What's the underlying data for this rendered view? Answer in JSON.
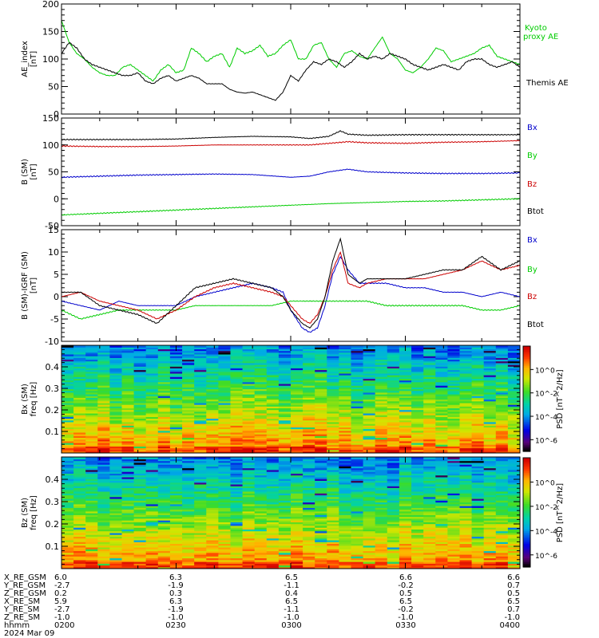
{
  "chart_data": [
    {
      "type": "line",
      "ylabel": [
        "AE_index",
        "[nT]"
      ],
      "ylim": [
        0,
        200
      ],
      "yticks": [
        0,
        50,
        100,
        150,
        200
      ],
      "xlim": [
        "0200",
        "0400"
      ],
      "series": [
        {
          "name": "Kyoto proxy AE",
          "label_lines": [
            "Kyoto",
            "proxy AE"
          ],
          "color": "#00cc00",
          "x": [
            0,
            2,
            4,
            6,
            8,
            10,
            12,
            14,
            16,
            18,
            20,
            22,
            24,
            26,
            28,
            30,
            32,
            34,
            36,
            38,
            40,
            42,
            44,
            46,
            48,
            50,
            52,
            54,
            56,
            58,
            60,
            62,
            64,
            66,
            68,
            70,
            72,
            74,
            76,
            78,
            80,
            82,
            84,
            86,
            88,
            90,
            92,
            94,
            96,
            98,
            100,
            102,
            104,
            106,
            108,
            110,
            112,
            114,
            116,
            118,
            120
          ],
          "y": [
            170,
            130,
            110,
            100,
            85,
            75,
            70,
            70,
            85,
            90,
            80,
            70,
            60,
            80,
            90,
            75,
            80,
            120,
            110,
            95,
            105,
            110,
            85,
            120,
            110,
            115,
            125,
            105,
            110,
            125,
            135,
            100,
            100,
            125,
            130,
            100,
            85,
            110,
            115,
            105,
            100,
            120,
            140,
            110,
            100,
            80,
            75,
            85,
            100,
            120,
            115,
            95,
            100,
            105,
            110,
            120,
            125,
            105,
            100,
            95,
            90
          ]
        },
        {
          "name": "Themis AE",
          "color": "#000000",
          "x": [
            0,
            2,
            4,
            6,
            8,
            10,
            12,
            14,
            16,
            18,
            20,
            22,
            24,
            26,
            28,
            30,
            32,
            34,
            36,
            38,
            40,
            42,
            44,
            46,
            48,
            50,
            52,
            54,
            56,
            58,
            60,
            62,
            64,
            66,
            68,
            70,
            72,
            74,
            76,
            78,
            80,
            82,
            84,
            86,
            88,
            90,
            92,
            94,
            96,
            98,
            100,
            102,
            104,
            106,
            108,
            110,
            112,
            114,
            116,
            118,
            120
          ],
          "y": [
            110,
            130,
            120,
            100,
            90,
            85,
            80,
            75,
            70,
            70,
            75,
            60,
            55,
            65,
            70,
            60,
            65,
            70,
            65,
            55,
            55,
            55,
            45,
            40,
            38,
            40,
            35,
            30,
            25,
            40,
            70,
            60,
            80,
            95,
            90,
            100,
            95,
            85,
            95,
            110,
            100,
            105,
            100,
            110,
            105,
            100,
            90,
            85,
            80,
            85,
            90,
            85,
            80,
            95,
            100,
            100,
            90,
            85,
            90,
            95,
            85
          ]
        }
      ]
    },
    {
      "type": "line",
      "ylabel": [
        "B (SM)",
        "[nT]"
      ],
      "ylim": [
        -50,
        150
      ],
      "yticks": [
        -50,
        0,
        50,
        100,
        150
      ],
      "xlim": [
        "0200",
        "0400"
      ],
      "series": [
        {
          "name": "Bx",
          "color": "#0000cc",
          "x": [
            0,
            10,
            20,
            30,
            40,
            50,
            60,
            65,
            70,
            75,
            80,
            85,
            90,
            100,
            110,
            120
          ],
          "y": [
            40,
            42,
            44,
            45,
            46,
            45,
            40,
            42,
            50,
            55,
            50,
            49,
            48,
            47,
            47,
            48
          ]
        },
        {
          "name": "By",
          "color": "#00cc00",
          "x": [
            0,
            10,
            20,
            30,
            40,
            50,
            60,
            70,
            80,
            90,
            100,
            110,
            120
          ],
          "y": [
            -30,
            -27,
            -24,
            -21,
            -18,
            -15,
            -12,
            -9,
            -7,
            -5,
            -4,
            -2,
            0
          ]
        },
        {
          "name": "Bz",
          "color": "#cc0000",
          "x": [
            0,
            10,
            20,
            30,
            40,
            50,
            60,
            65,
            70,
            75,
            80,
            90,
            100,
            110,
            120
          ],
          "y": [
            98,
            97,
            97,
            98,
            100,
            100,
            100,
            100,
            103,
            106,
            104,
            103,
            105,
            106,
            108
          ]
        },
        {
          "name": "Btot",
          "color": "#000000",
          "x": [
            0,
            10,
            20,
            30,
            40,
            50,
            60,
            65,
            70,
            73,
            75,
            80,
            90,
            100,
            110,
            120
          ],
          "y": [
            110,
            110,
            110,
            111,
            114,
            116,
            115,
            112,
            116,
            126,
            120,
            118,
            119,
            119,
            119,
            119
          ]
        }
      ]
    },
    {
      "type": "line",
      "ylabel": [
        "B (SM)-IGRF (SM)",
        "[nT]"
      ],
      "ylim": [
        -10,
        15
      ],
      "yticks": [
        -10,
        -5,
        0,
        5,
        10,
        15
      ],
      "xlim": [
        "0200",
        "0400"
      ],
      "series": [
        {
          "name": "Bx",
          "color": "#0000cc",
          "x": [
            0,
            5,
            10,
            15,
            20,
            25,
            30,
            35,
            40,
            45,
            50,
            55,
            58,
            60,
            63,
            65,
            67,
            69,
            71,
            73,
            75,
            78,
            80,
            85,
            90,
            95,
            100,
            105,
            110,
            115,
            120
          ],
          "y": [
            -1,
            -2,
            -3,
            -1,
            -2,
            -2,
            -2,
            0,
            1,
            2,
            3,
            2,
            1,
            -3,
            -7,
            -8,
            -7,
            -2,
            5,
            9,
            6,
            3,
            3,
            3,
            2,
            2,
            1,
            1,
            0,
            1,
            0
          ]
        },
        {
          "name": "By",
          "color": "#00cc00",
          "x": [
            0,
            5,
            10,
            15,
            20,
            25,
            30,
            35,
            40,
            45,
            50,
            55,
            60,
            65,
            70,
            75,
            80,
            85,
            90,
            95,
            100,
            105,
            110,
            115,
            120
          ],
          "y": [
            -3,
            -5,
            -4,
            -3,
            -3,
            -3,
            -3,
            -2,
            -2,
            -2,
            -2,
            -2,
            -1,
            -1,
            -1,
            -1,
            -1,
            -2,
            -2,
            -2,
            -2,
            -2,
            -3,
            -3,
            -2
          ]
        },
        {
          "name": "Bz",
          "color": "#cc0000",
          "x": [
            0,
            5,
            10,
            15,
            20,
            25,
            30,
            35,
            40,
            45,
            50,
            55,
            58,
            60,
            63,
            65,
            67,
            69,
            71,
            73,
            75,
            78,
            80,
            85,
            90,
            95,
            100,
            105,
            110,
            115,
            120
          ],
          "y": [
            0,
            1,
            -1,
            -2,
            -3,
            -5,
            -3,
            0,
            2,
            3,
            2,
            1,
            0,
            -2,
            -5,
            -6,
            -4,
            0,
            6,
            10,
            3,
            2,
            3,
            4,
            4,
            4,
            5,
            6,
            8,
            6,
            7
          ]
        },
        {
          "name": "Btot",
          "color": "#000000",
          "x": [
            0,
            5,
            10,
            15,
            20,
            25,
            30,
            35,
            40,
            45,
            50,
            55,
            58,
            60,
            63,
            65,
            67,
            69,
            71,
            73,
            75,
            78,
            80,
            85,
            90,
            95,
            100,
            105,
            110,
            115,
            120
          ],
          "y": [
            1,
            1,
            -2,
            -3,
            -4,
            -6,
            -2,
            2,
            3,
            4,
            3,
            2,
            0,
            -3,
            -6,
            -7,
            -5,
            0,
            8,
            13,
            5,
            3,
            4,
            4,
            4,
            5,
            6,
            6,
            9,
            6,
            8
          ]
        }
      ]
    },
    {
      "type": "heatmap",
      "ylabel": [
        "Bx (SM)",
        "freq [Hz]"
      ],
      "ylim": [
        0,
        0.5
      ],
      "yticks": [
        0.1,
        0.2,
        0.3,
        0.4
      ],
      "xlim": [
        "0200",
        "0400"
      ],
      "colorbar": {
        "label": "PSD [nT^2/Hz]",
        "log_range": [
          -7,
          2
        ],
        "ticks": [
          "10^0",
          "10^-2",
          "10^-4",
          "10^-6"
        ]
      }
    },
    {
      "type": "heatmap",
      "ylabel": [
        "Bz (SM)",
        "freq [Hz]"
      ],
      "ylim": [
        0,
        0.5
      ],
      "yticks": [
        0.1,
        0.2,
        0.3,
        0.4
      ],
      "xlim": [
        "0200",
        "0400"
      ],
      "colorbar": {
        "label": "PSD [nT^2/Hz]",
        "log_range": [
          -7,
          2
        ],
        "ticks": [
          "10^0",
          "10^-2",
          "10^-4",
          "10^-6"
        ]
      }
    }
  ],
  "ephemeris": {
    "rows": [
      {
        "label": "X_RE_GSM",
        "values": [
          "6.0",
          "6.3",
          "6.5",
          "6.6",
          "6.6"
        ]
      },
      {
        "label": "Y_RE_GSM",
        "values": [
          "-2.7",
          "-1.9",
          "-1.1",
          "-0.2",
          "0.7"
        ]
      },
      {
        "label": "Z_RE_GSM",
        "values": [
          "0.2",
          "0.3",
          "0.4",
          "0.5",
          "0.5"
        ]
      },
      {
        "label": "X_RE_SM",
        "values": [
          "5.9",
          "6.3",
          "6.5",
          "6.5",
          "6.5"
        ]
      },
      {
        "label": "Y_RE_SM",
        "values": [
          "-2.7",
          "-1.9",
          "-1.1",
          "-0.2",
          "0.7"
        ]
      },
      {
        "label": "Z_RE_SM",
        "values": [
          "-1.0",
          "-1.0",
          "-1.0",
          "-1.0",
          "-1.0"
        ]
      },
      {
        "label": "hhmm",
        "values": [
          "0200",
          "0230",
          "0300",
          "0330",
          "0400"
        ]
      }
    ],
    "date": "2024 Mar 09"
  }
}
